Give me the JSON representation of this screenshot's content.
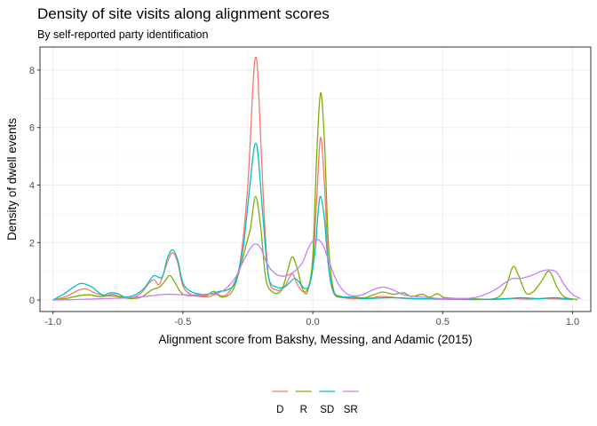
{
  "chart_data": {
    "type": "line",
    "title": "Density of site visits along alignment scores",
    "subtitle": "By self-reported party identification",
    "xlabel": "Alignment score from Bakshy, Messing, and Adamic (2015)",
    "ylabel": "Density of dwell events",
    "xlim": [
      -1.05,
      1.07
    ],
    "ylim": [
      -0.4,
      8.8
    ],
    "x_ticks": [
      -1.0,
      -0.5,
      0.0,
      0.5,
      1.0
    ],
    "x_tick_labels": [
      "-1.0",
      "-0.5",
      "0.0",
      "0.5",
      "1.0"
    ],
    "y_ticks": [
      0,
      2,
      4,
      6,
      8
    ],
    "y_tick_labels": [
      "0",
      "2",
      "4",
      "6",
      "8"
    ],
    "grid": true,
    "legend_position": "bottom",
    "series": [
      {
        "name": "D",
        "color": "#F8766D",
        "points": [
          [
            -1.0,
            0.0
          ],
          [
            -0.95,
            0.12
          ],
          [
            -0.9,
            0.35
          ],
          [
            -0.87,
            0.38
          ],
          [
            -0.84,
            0.25
          ],
          [
            -0.8,
            0.15
          ],
          [
            -0.77,
            0.2
          ],
          [
            -0.74,
            0.12
          ],
          [
            -0.7,
            0.08
          ],
          [
            -0.66,
            0.25
          ],
          [
            -0.63,
            0.6
          ],
          [
            -0.61,
            0.7
          ],
          [
            -0.59,
            0.55
          ],
          [
            -0.56,
            1.3
          ],
          [
            -0.54,
            1.65
          ],
          [
            -0.52,
            1.3
          ],
          [
            -0.5,
            0.5
          ],
          [
            -0.47,
            0.2
          ],
          [
            -0.43,
            0.12
          ],
          [
            -0.4,
            0.12
          ],
          [
            -0.37,
            0.2
          ],
          [
            -0.34,
            0.15
          ],
          [
            -0.31,
            0.45
          ],
          [
            -0.28,
            1.3
          ],
          [
            -0.25,
            4.0
          ],
          [
            -0.23,
            7.5
          ],
          [
            -0.22,
            8.45
          ],
          [
            -0.21,
            7.6
          ],
          [
            -0.19,
            3.5
          ],
          [
            -0.17,
            0.8
          ],
          [
            -0.14,
            0.35
          ],
          [
            -0.11,
            0.45
          ],
          [
            -0.08,
            0.9
          ],
          [
            -0.06,
            0.55
          ],
          [
            -0.04,
            0.3
          ],
          [
            -0.02,
            0.4
          ],
          [
            0.0,
            1.2
          ],
          [
            0.015,
            3.5
          ],
          [
            0.03,
            5.65
          ],
          [
            0.045,
            4.0
          ],
          [
            0.06,
            1.3
          ],
          [
            0.08,
            0.25
          ],
          [
            0.12,
            0.08
          ],
          [
            0.2,
            0.05
          ],
          [
            0.26,
            0.12
          ],
          [
            0.3,
            0.1
          ],
          [
            0.36,
            0.05
          ],
          [
            0.45,
            0.04
          ],
          [
            0.55,
            0.03
          ],
          [
            0.7,
            0.02
          ],
          [
            0.77,
            0.05
          ],
          [
            0.83,
            0.03
          ],
          [
            0.9,
            0.05
          ],
          [
            1.0,
            0.02
          ]
        ]
      },
      {
        "name": "R",
        "color": "#7CAE00",
        "points": [
          [
            -1.0,
            0.0
          ],
          [
            -0.95,
            0.05
          ],
          [
            -0.9,
            0.15
          ],
          [
            -0.86,
            0.18
          ],
          [
            -0.82,
            0.12
          ],
          [
            -0.78,
            0.15
          ],
          [
            -0.74,
            0.1
          ],
          [
            -0.7,
            0.05
          ],
          [
            -0.66,
            0.1
          ],
          [
            -0.62,
            0.35
          ],
          [
            -0.59,
            0.45
          ],
          [
            -0.57,
            0.65
          ],
          [
            -0.55,
            0.85
          ],
          [
            -0.53,
            0.6
          ],
          [
            -0.5,
            0.2
          ],
          [
            -0.45,
            0.15
          ],
          [
            -0.41,
            0.15
          ],
          [
            -0.38,
            0.3
          ],
          [
            -0.35,
            0.1
          ],
          [
            -0.31,
            0.3
          ],
          [
            -0.28,
            1.1
          ],
          [
            -0.26,
            1.8
          ],
          [
            -0.24,
            2.5
          ],
          [
            -0.22,
            3.6
          ],
          [
            -0.2,
            2.5
          ],
          [
            -0.18,
            0.7
          ],
          [
            -0.15,
            0.25
          ],
          [
            -0.12,
            0.35
          ],
          [
            -0.1,
            0.9
          ],
          [
            -0.08,
            1.5
          ],
          [
            -0.06,
            1.1
          ],
          [
            -0.04,
            0.4
          ],
          [
            -0.02,
            0.3
          ],
          [
            0.0,
            1.5
          ],
          [
            0.015,
            5.0
          ],
          [
            0.03,
            7.2
          ],
          [
            0.045,
            5.5
          ],
          [
            0.06,
            2.0
          ],
          [
            0.08,
            0.35
          ],
          [
            0.11,
            0.1
          ],
          [
            0.16,
            0.1
          ],
          [
            0.2,
            0.08
          ],
          [
            0.24,
            0.2
          ],
          [
            0.27,
            0.28
          ],
          [
            0.31,
            0.2
          ],
          [
            0.35,
            0.25
          ],
          [
            0.38,
            0.12
          ],
          [
            0.42,
            0.2
          ],
          [
            0.45,
            0.1
          ],
          [
            0.48,
            0.22
          ],
          [
            0.51,
            0.08
          ],
          [
            0.6,
            0.05
          ],
          [
            0.7,
            0.05
          ],
          [
            0.74,
            0.4
          ],
          [
            0.77,
            1.15
          ],
          [
            0.79,
            0.9
          ],
          [
            0.82,
            0.25
          ],
          [
            0.85,
            0.3
          ],
          [
            0.88,
            0.65
          ],
          [
            0.91,
            1.0
          ],
          [
            0.94,
            0.45
          ],
          [
            0.97,
            0.1
          ],
          [
            1.02,
            0.02
          ]
        ]
      },
      {
        "name": "SD",
        "color": "#00BFC4",
        "points": [
          [
            -1.0,
            0.0
          ],
          [
            -0.96,
            0.2
          ],
          [
            -0.92,
            0.45
          ],
          [
            -0.89,
            0.58
          ],
          [
            -0.85,
            0.45
          ],
          [
            -0.81,
            0.18
          ],
          [
            -0.78,
            0.25
          ],
          [
            -0.75,
            0.22
          ],
          [
            -0.72,
            0.1
          ],
          [
            -0.68,
            0.2
          ],
          [
            -0.65,
            0.4
          ],
          [
            -0.63,
            0.65
          ],
          [
            -0.61,
            0.85
          ],
          [
            -0.58,
            0.8
          ],
          [
            -0.56,
            1.45
          ],
          [
            -0.54,
            1.75
          ],
          [
            -0.52,
            1.4
          ],
          [
            -0.5,
            0.6
          ],
          [
            -0.47,
            0.3
          ],
          [
            -0.43,
            0.2
          ],
          [
            -0.39,
            0.22
          ],
          [
            -0.36,
            0.3
          ],
          [
            -0.33,
            0.35
          ],
          [
            -0.3,
            0.6
          ],
          [
            -0.27,
            1.7
          ],
          [
            -0.25,
            3.3
          ],
          [
            -0.23,
            5.0
          ],
          [
            -0.22,
            5.45
          ],
          [
            -0.21,
            5.0
          ],
          [
            -0.19,
            2.7
          ],
          [
            -0.17,
            0.8
          ],
          [
            -0.14,
            0.45
          ],
          [
            -0.11,
            0.45
          ],
          [
            -0.09,
            0.6
          ],
          [
            -0.07,
            0.75
          ],
          [
            -0.05,
            0.6
          ],
          [
            -0.03,
            0.4
          ],
          [
            -0.01,
            0.6
          ],
          [
            0.01,
            1.8
          ],
          [
            0.02,
            3.0
          ],
          [
            0.03,
            3.6
          ],
          [
            0.045,
            2.8
          ],
          [
            0.06,
            1.2
          ],
          [
            0.08,
            0.3
          ],
          [
            0.11,
            0.12
          ],
          [
            0.15,
            0.1
          ],
          [
            0.2,
            0.05
          ],
          [
            0.3,
            0.08
          ],
          [
            0.4,
            0.05
          ],
          [
            0.5,
            0.03
          ],
          [
            0.65,
            0.02
          ],
          [
            0.75,
            0.05
          ],
          [
            0.8,
            0.08
          ],
          [
            0.87,
            0.05
          ],
          [
            0.93,
            0.08
          ],
          [
            1.0,
            0.02
          ]
        ]
      },
      {
        "name": "SR",
        "color": "#C77CFF",
        "points": [
          [
            -1.0,
            0.0
          ],
          [
            -0.9,
            0.02
          ],
          [
            -0.8,
            0.05
          ],
          [
            -0.7,
            0.08
          ],
          [
            -0.62,
            0.15
          ],
          [
            -0.56,
            0.2
          ],
          [
            -0.5,
            0.18
          ],
          [
            -0.45,
            0.18
          ],
          [
            -0.4,
            0.2
          ],
          [
            -0.35,
            0.3
          ],
          [
            -0.3,
            0.75
          ],
          [
            -0.27,
            1.3
          ],
          [
            -0.24,
            1.8
          ],
          [
            -0.22,
            1.95
          ],
          [
            -0.2,
            1.8
          ],
          [
            -0.18,
            1.35
          ],
          [
            -0.16,
            1.05
          ],
          [
            -0.13,
            0.85
          ],
          [
            -0.1,
            0.85
          ],
          [
            -0.07,
            1.0
          ],
          [
            -0.04,
            1.3
          ],
          [
            -0.02,
            1.75
          ],
          [
            0.0,
            2.05
          ],
          [
            0.02,
            2.1
          ],
          [
            0.04,
            1.9
          ],
          [
            0.06,
            1.4
          ],
          [
            0.09,
            0.7
          ],
          [
            0.12,
            0.3
          ],
          [
            0.15,
            0.15
          ],
          [
            0.19,
            0.18
          ],
          [
            0.23,
            0.35
          ],
          [
            0.27,
            0.45
          ],
          [
            0.31,
            0.35
          ],
          [
            0.35,
            0.18
          ],
          [
            0.4,
            0.12
          ],
          [
            0.5,
            0.05
          ],
          [
            0.6,
            0.06
          ],
          [
            0.65,
            0.15
          ],
          [
            0.7,
            0.35
          ],
          [
            0.74,
            0.6
          ],
          [
            0.77,
            0.75
          ],
          [
            0.8,
            0.75
          ],
          [
            0.84,
            0.85
          ],
          [
            0.88,
            1.0
          ],
          [
            0.91,
            1.05
          ],
          [
            0.94,
            0.95
          ],
          [
            0.97,
            0.5
          ],
          [
            1.0,
            0.2
          ],
          [
            1.03,
            0.05
          ]
        ]
      }
    ]
  }
}
